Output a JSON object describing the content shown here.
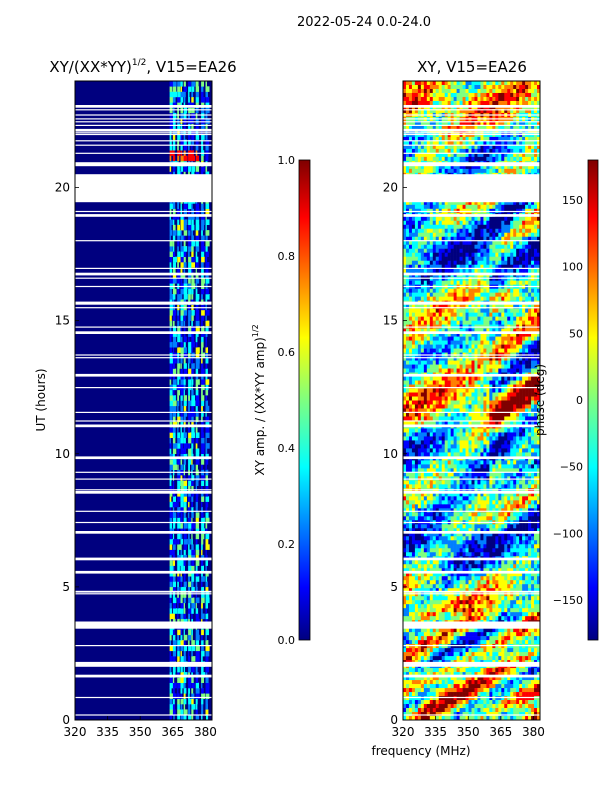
{
  "suptitle": "2022-05-24 0.0-24.0",
  "chart_data": [
    {
      "type": "heatmap",
      "title_main": "XY/(XX*YY)",
      "title_sup": "1/2",
      "title_tail": ", V15=EA26",
      "ylabel": "UT (hours)",
      "xlabel": "",
      "xlim": [
        320,
        383
      ],
      "ylim": [
        0,
        24
      ],
      "xticks": [
        "320",
        "335",
        "350",
        "365",
        "380"
      ],
      "yticks": [
        "0",
        "5",
        "10",
        "15",
        "20"
      ],
      "colorbar": {
        "label_main": "XY amp. / (XX*YY amp)",
        "label_sup": "1/2",
        "range": [
          0.0,
          1.0
        ],
        "ticks": [
          "0.0",
          "0.2",
          "0.4",
          "0.6",
          "0.8",
          "1.0"
        ],
        "colormap": "jet"
      }
    },
    {
      "type": "heatmap",
      "title": "XY, V15=EA26",
      "ylabel": "",
      "xlabel": "frequency (MHz)",
      "xlim": [
        320,
        383
      ],
      "ylim": [
        0,
        24
      ],
      "xticks": [
        "320",
        "335",
        "350",
        "365",
        "380"
      ],
      "yticks": [
        "0",
        "5",
        "10",
        "15",
        "20"
      ],
      "colorbar": {
        "label": "phase (deg)",
        "range": [
          -180,
          180
        ],
        "ticks": [
          "-150",
          "-100",
          "-50",
          "0",
          "50",
          "100",
          "150"
        ],
        "colormap": "jet"
      }
    }
  ],
  "colors": {
    "jet": [
      "#00007f",
      "#0000ff",
      "#007fff",
      "#00ffff",
      "#7fff7f",
      "#ffff00",
      "#ff7f00",
      "#ff0000",
      "#7f0000"
    ]
  }
}
